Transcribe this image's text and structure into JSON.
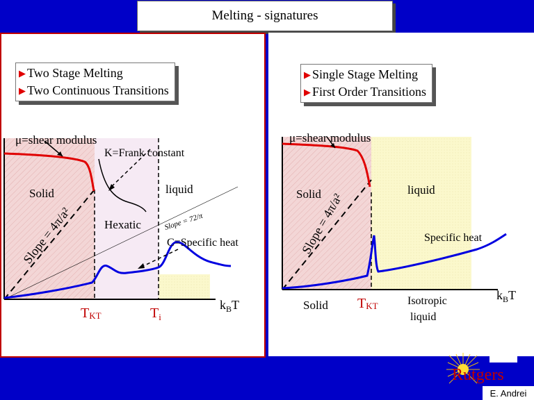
{
  "title": "Melting - signatures",
  "left": {
    "bullets": [
      "Two Stage Melting",
      "Two Continuous Transitions"
    ],
    "labels": {
      "shear_modulus": "μ=shear modulus",
      "frank": "K=Frank constant",
      "solid": "Solid",
      "liquid": "liquid",
      "hexatic": "Hexatic",
      "slope_main": "Slope = 4π/a²",
      "slope_inner": "Slope = 72/π",
      "specific_heat": "C=Specific heat",
      "tkt_main": "T",
      "tkt_sub": "KT",
      "ti_main": "T",
      "ti_sub": "i",
      "kbt_main": "k",
      "kbt_sub": "B",
      "kbt_end": "T"
    }
  },
  "right": {
    "bullets": [
      "Single Stage Melting",
      "First Order Transitions"
    ],
    "labels": {
      "shear_modulus": "μ=shear modulus",
      "solid": "Solid",
      "liquid": "liquid",
      "slope_main": "Slope = 4π/a²",
      "specific_heat": "Specific heat",
      "solid_bottom": "Solid",
      "tkt_main": "T",
      "tkt_sub": "KT",
      "isotropic_1": "Isotropic",
      "isotropic_2": "liquid",
      "kbt_main": "k",
      "kbt_sub": "B",
      "kbt_end": "T"
    }
  },
  "logo_text": "Rutgers",
  "credit": "E. Andrei",
  "colors": {
    "background": "#0000c8",
    "accent_red": "#e00000",
    "curve_blue": "#0000e0",
    "solid_fill": "#f3d6d6",
    "hexatic_fill": "#f6eaf4",
    "liquid_fill": "#fbf8cc"
  }
}
